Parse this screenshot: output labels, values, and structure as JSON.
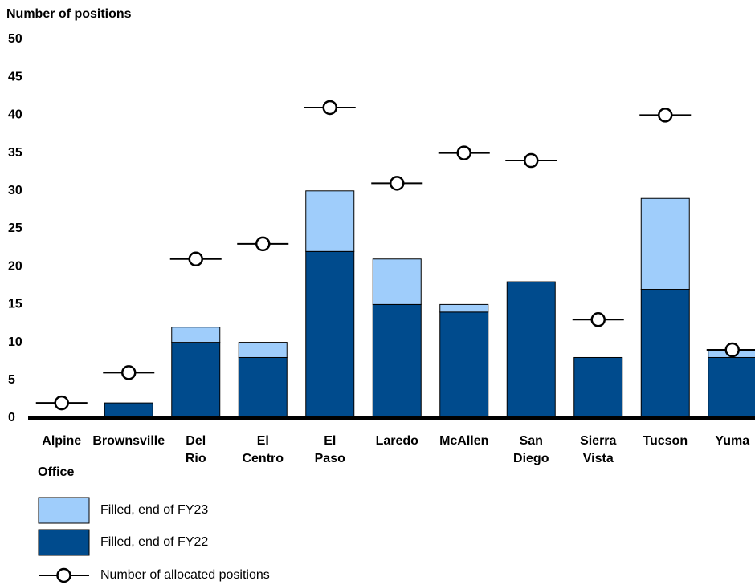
{
  "chart_data": {
    "type": "bar",
    "stacked": true,
    "y_axis_title": "Number of positions",
    "x_axis_title": "Office",
    "categories": [
      "Alpine",
      "Brownsville",
      "Del Rio",
      "El Centro",
      "El Paso",
      "Laredo",
      "McAllen",
      "San Diego",
      "Sierra Vista",
      "Tucson",
      "Yuma"
    ],
    "series": [
      {
        "name": "Filled, end of FY22",
        "type": "bar",
        "color": "#004b8d",
        "values": [
          0,
          2,
          10,
          8,
          22,
          15,
          14,
          18,
          8,
          17,
          8
        ]
      },
      {
        "name": "Filled, end of FY23",
        "type": "bar",
        "color": "#9fcdfb",
        "values": [
          0,
          0,
          2,
          2,
          8,
          6,
          1,
          0,
          0,
          12,
          1
        ]
      },
      {
        "name": "Number of allocated positions",
        "type": "marker",
        "color": "#000000",
        "values": [
          2,
          6,
          21,
          23,
          41,
          31,
          35,
          34,
          13,
          40,
          9
        ]
      }
    ],
    "ylim": [
      0,
      50
    ],
    "yticks": [
      0,
      5,
      10,
      15,
      20,
      25,
      30,
      35,
      40,
      45,
      50
    ],
    "grid": false
  }
}
